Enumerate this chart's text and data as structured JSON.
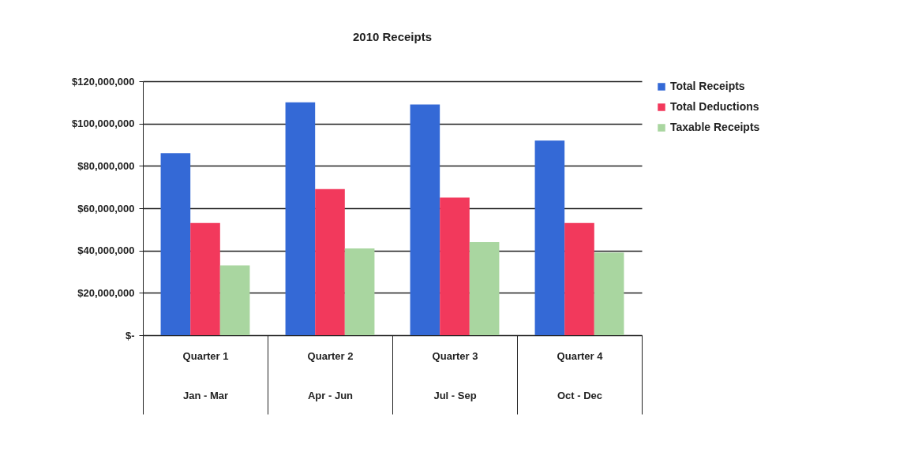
{
  "chart_data": {
    "type": "bar",
    "title": "2010 Receipts",
    "categories": [
      "Quarter 1\nJan - Mar",
      "Quarter 2\nApr - Jun",
      "Quarter 3\nJul - Sep",
      "Quarter 4\nOct - Dec"
    ],
    "series": [
      {
        "name": "Total Receipts",
        "color": "#3469d6",
        "values": [
          86000000,
          110000000,
          109000000,
          92000000
        ]
      },
      {
        "name": "Total Deductions",
        "color": "#f2395c",
        "values": [
          53000000,
          69000000,
          65000000,
          53000000
        ]
      },
      {
        "name": "Taxable Receipts",
        "color": "#a9d6a0",
        "values": [
          33000000,
          41000000,
          44000000,
          39000000
        ]
      }
    ],
    "ylim": [
      0,
      120000000
    ],
    "yticks": [
      {
        "value": 0,
        "label": "$-"
      },
      {
        "value": 20000000,
        "label": "$20,000,000"
      },
      {
        "value": 40000000,
        "label": "$40,000,000"
      },
      {
        "value": 60000000,
        "label": "$60,000,000"
      },
      {
        "value": 80000000,
        "label": "$80,000,000"
      },
      {
        "value": 100000000,
        "label": "$100,000,000"
      },
      {
        "value": 120000000,
        "label": "$120,000,000"
      }
    ],
    "grid": "y",
    "legend": "right"
  }
}
